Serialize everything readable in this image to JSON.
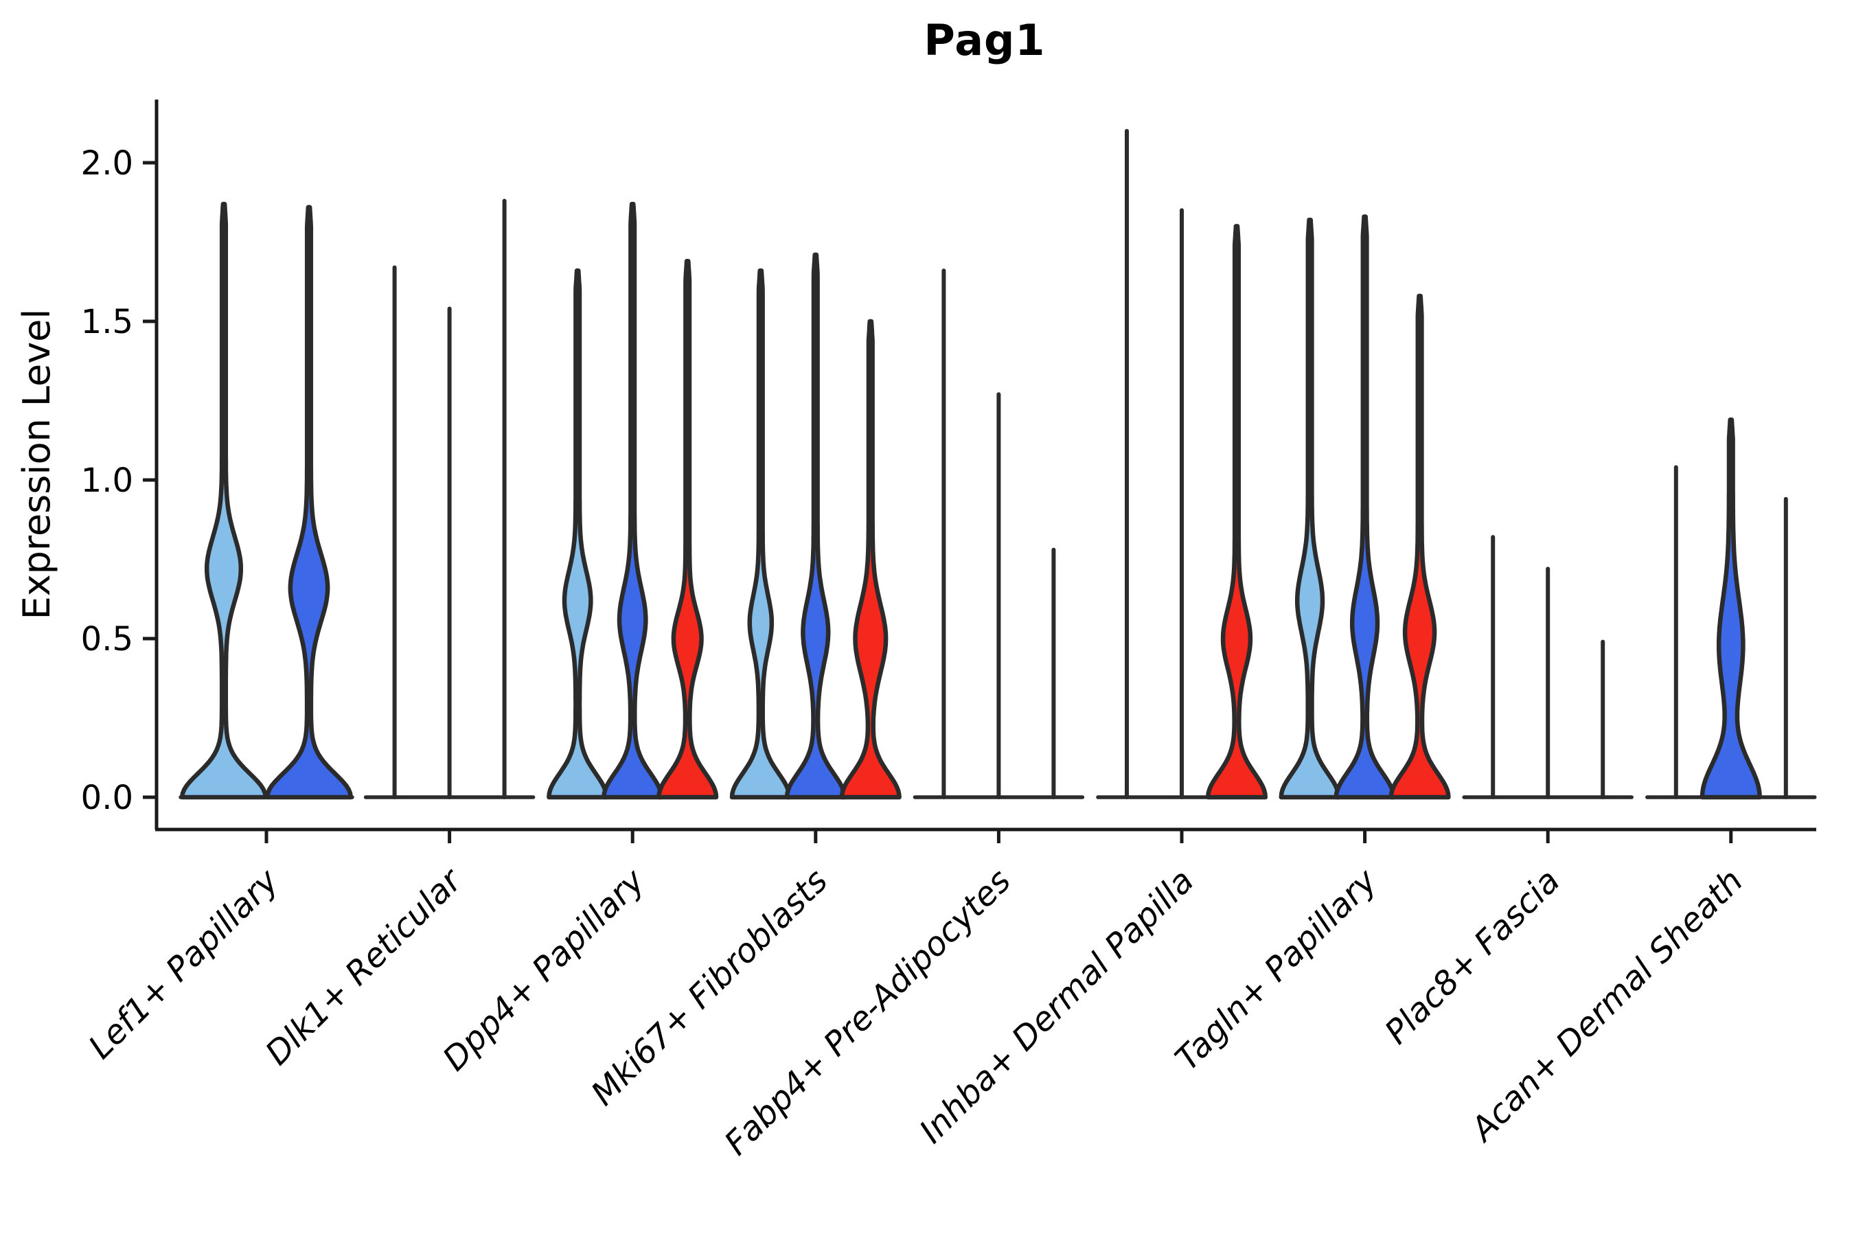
{
  "chart_data": {
    "type": "violin",
    "title": "Pag1",
    "ylabel": "Expression Level",
    "yticks": [
      "0.0",
      "0.5",
      "1.0",
      "1.5",
      "2.0"
    ],
    "ytick_values": [
      0.0,
      0.5,
      1.0,
      1.5,
      2.0
    ],
    "ylim": [
      0,
      2.1
    ],
    "grid": false,
    "legend_position": "none",
    "series_colors": {
      "series1": "#85BEE8",
      "series2": "#3D69E8",
      "series3": "#F5281E"
    },
    "outline_color": "#2b2b2b",
    "axis_color": "#1a1a1a",
    "categories": [
      "Lef1+ Papillary",
      "Dlk1+ Reticular",
      "Dpp4+ Papillary",
      "Mki67+ Fibroblasts",
      "Fabp4+ Pre-Adipocytes",
      "Inhba+ Dermal Papilla",
      "Tagln+ Papillary",
      "Plac8+ Fascia",
      "Acan+ Dermal Sheath"
    ],
    "groups": [
      {
        "category": "Lef1+ Papillary",
        "violins": [
          {
            "series": "series1",
            "kind": "violin",
            "max": 1.87,
            "bulge_center": 0.72,
            "bulge_sigma": 0.14,
            "bulge_halfwidth_frac": 0.38
          },
          {
            "series": "series2",
            "kind": "violin",
            "max": 1.86,
            "bulge_center": 0.66,
            "bulge_sigma": 0.15,
            "bulge_halfwidth_frac": 0.42
          }
        ]
      },
      {
        "category": "Dlk1+ Reticular",
        "violins": [
          {
            "series": "series1",
            "kind": "line",
            "max": 1.67
          },
          {
            "series": "series2",
            "kind": "line",
            "max": 1.54
          },
          {
            "series": "series3",
            "kind": "line",
            "max": 1.88
          }
        ]
      },
      {
        "category": "Dpp4+ Papillary",
        "violins": [
          {
            "series": "series1",
            "kind": "violin",
            "max": 1.66,
            "bulge_center": 0.62,
            "bulge_sigma": 0.13,
            "bulge_halfwidth_frac": 0.42
          },
          {
            "series": "series2",
            "kind": "violin",
            "max": 1.87,
            "bulge_center": 0.56,
            "bulge_sigma": 0.14,
            "bulge_halfwidth_frac": 0.42
          },
          {
            "series": "series3",
            "kind": "violin",
            "max": 1.69,
            "bulge_center": 0.5,
            "bulge_sigma": 0.12,
            "bulge_halfwidth_frac": 0.45
          }
        ]
      },
      {
        "category": "Mki67+ Fibroblasts",
        "violins": [
          {
            "series": "series1",
            "kind": "violin",
            "max": 1.66,
            "bulge_center": 0.55,
            "bulge_sigma": 0.12,
            "bulge_halfwidth_frac": 0.34
          },
          {
            "series": "series2",
            "kind": "violin",
            "max": 1.71,
            "bulge_center": 0.52,
            "bulge_sigma": 0.14,
            "bulge_halfwidth_frac": 0.4
          },
          {
            "series": "series3",
            "kind": "violin",
            "max": 1.5,
            "bulge_center": 0.5,
            "bulge_sigma": 0.15,
            "bulge_halfwidth_frac": 0.5
          }
        ]
      },
      {
        "category": "Fabp4+ Pre-Adipocytes",
        "violins": [
          {
            "series": "series1",
            "kind": "line",
            "max": 1.66
          },
          {
            "series": "series2",
            "kind": "line",
            "max": 1.27
          },
          {
            "series": "series3",
            "kind": "line",
            "max": 0.78
          }
        ]
      },
      {
        "category": "Inhba+ Dermal Papilla",
        "violins": [
          {
            "series": "series1",
            "kind": "line",
            "max": 2.1
          },
          {
            "series": "series2",
            "kind": "line",
            "max": 1.85
          },
          {
            "series": "series3",
            "kind": "violin",
            "max": 1.8,
            "bulge_center": 0.5,
            "bulge_sigma": 0.13,
            "bulge_halfwidth_frac": 0.44
          }
        ]
      },
      {
        "category": "Tagln+ Papillary",
        "violins": [
          {
            "series": "series1",
            "kind": "violin",
            "max": 1.82,
            "bulge_center": 0.62,
            "bulge_sigma": 0.14,
            "bulge_halfwidth_frac": 0.4
          },
          {
            "series": "series2",
            "kind": "violin",
            "max": 1.83,
            "bulge_center": 0.55,
            "bulge_sigma": 0.15,
            "bulge_halfwidth_frac": 0.4
          },
          {
            "series": "series3",
            "kind": "violin",
            "max": 1.58,
            "bulge_center": 0.52,
            "bulge_sigma": 0.14,
            "bulge_halfwidth_frac": 0.48
          }
        ]
      },
      {
        "category": "Plac8+ Fascia",
        "violins": [
          {
            "series": "series1",
            "kind": "line",
            "max": 0.82
          },
          {
            "series": "series2",
            "kind": "line",
            "max": 0.72
          },
          {
            "series": "series3",
            "kind": "line",
            "max": 0.49
          }
        ]
      },
      {
        "category": "Acan+ Dermal Sheath",
        "violins": [
          {
            "series": "series1",
            "kind": "line",
            "max": 1.04
          },
          {
            "series": "series2",
            "kind": "violin",
            "max": 1.19,
            "base_sigma": 0.15,
            "bulge_center": 0.48,
            "bulge_sigma": 0.2,
            "bulge_halfwidth_frac": 0.38
          },
          {
            "series": "series3",
            "kind": "line",
            "max": 0.94
          }
        ]
      }
    ]
  }
}
